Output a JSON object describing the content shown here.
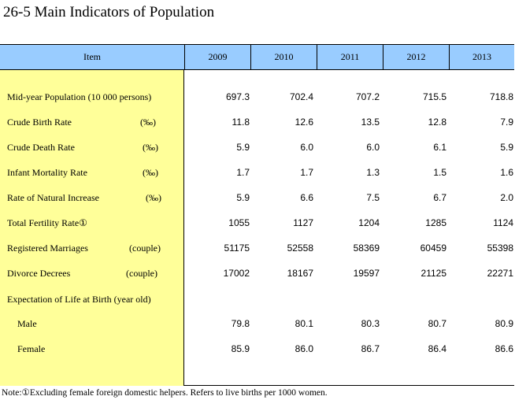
{
  "title": "26-5  Main Indicators of Population",
  "header": {
    "item_label": "Item",
    "years": [
      "2009",
      "2010",
      "2011",
      "2012",
      "2013"
    ]
  },
  "rows": [
    {
      "label": "Mid-year Population (10 000 persons)",
      "unit": "",
      "values": [
        "697.3",
        "702.4",
        "707.2",
        "715.5",
        "718.8"
      ]
    },
    {
      "label": "Crude Birth Rate",
      "unit": "(‰)",
      "values": [
        "11.8",
        "12.6",
        "13.5",
        "12.8",
        "7.9"
      ]
    },
    {
      "label": "Crude Death Rate",
      "unit": "(‰)",
      "values": [
        "5.9",
        "6.0",
        "6.0",
        "6.1",
        "5.9"
      ]
    },
    {
      "label": "Infant Mortality Rate",
      "unit": "(‰)",
      "values": [
        "1.7",
        "1.7",
        "1.3",
        "1.5",
        "1.6"
      ]
    },
    {
      "label": "Rate of Natural Increase",
      "unit": "(‰)",
      "values": [
        "5.9",
        "6.6",
        "7.5",
        "6.7",
        "2.0"
      ]
    },
    {
      "label": "Total Fertility Rate①",
      "unit": "",
      "values": [
        "1055",
        "1127",
        "1204",
        "1285",
        "1124"
      ]
    },
    {
      "label": "Registered Marriages",
      "unit": "(couple)",
      "values": [
        "51175",
        "52558",
        "58369",
        "60459",
        "55398"
      ]
    },
    {
      "label": "Divorce Decrees",
      "unit": "(couple)",
      "values": [
        "17002",
        "18167",
        "19597",
        "21125",
        "22271"
      ]
    },
    {
      "label": "Expectation of Life at Birth (year old)",
      "unit": "",
      "values": [
        "",
        "",
        "",
        "",
        ""
      ]
    },
    {
      "label": "Male",
      "unit": "",
      "values": [
        "79.8",
        "80.1",
        "80.3",
        "80.7",
        "80.9"
      ]
    },
    {
      "label": "Female",
      "unit": "",
      "values": [
        "85.9",
        "86.0",
        "86.7",
        "86.4",
        "86.6"
      ]
    }
  ],
  "note": "Note:①Excluding female foreign domestic helpers. Refers to live births per 1000 women."
}
